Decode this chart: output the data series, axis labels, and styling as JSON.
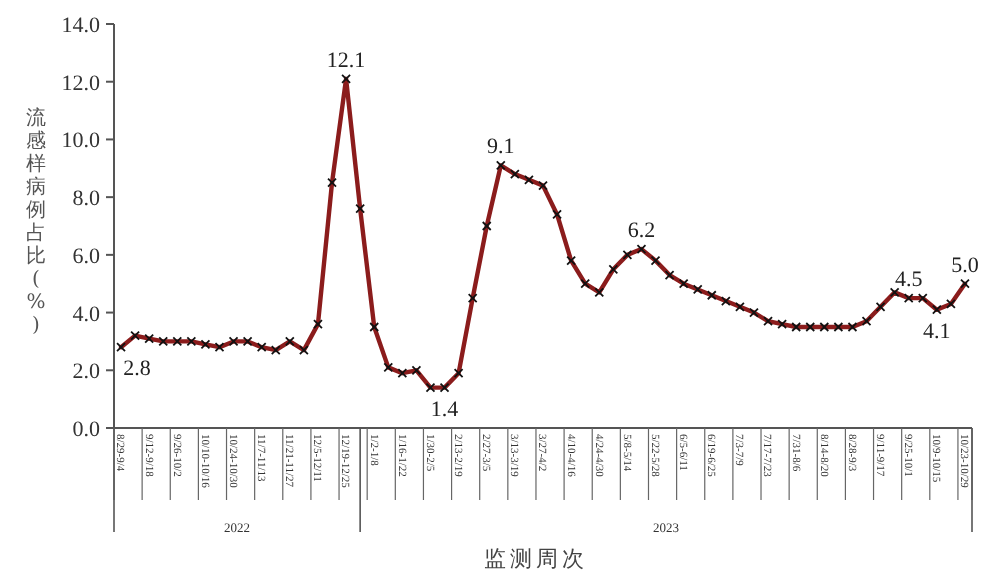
{
  "chart_data": {
    "type": "line",
    "ylabel": "流感样病例占比(%)",
    "xlabel": "监测周次",
    "annotations": [
      "2022",
      "2023"
    ],
    "categories": [
      "8/29-9/4",
      null,
      "9/12-9/18",
      null,
      "9/26-10/2",
      null,
      "10/10-10/16",
      null,
      "10/24-10/30",
      null,
      "11/7-11/13",
      null,
      "11/21-11/27",
      null,
      "12/5-12/11",
      null,
      "12/19-12/25",
      null,
      "1/2-1/8",
      null,
      "1/16-1/22",
      null,
      "1/30-2/5",
      null,
      "2/13-2/19",
      null,
      "2/27-3/5",
      null,
      "3/13-3/19",
      null,
      "3/27-4/2",
      null,
      "4/10-4/16",
      null,
      "4/24-4/30",
      null,
      "5/8-5/14",
      null,
      "5/22-5/28",
      null,
      "6/5-6/11",
      null,
      "6/19-6/25",
      null,
      "7/3-7/9",
      null,
      "7/17-7/23",
      null,
      "7/31-8/6",
      null,
      "8/14-8/20",
      null,
      "8/28-9/3",
      null,
      "9/11-9/17",
      null,
      "9/25-10/1",
      null,
      "10/9-10/15",
      null,
      "10/23-10/29"
    ],
    "series": [
      {
        "color": "#8b1c1c",
        "values": [
          2.8,
          3.2,
          3.1,
          3.0,
          3.0,
          3.0,
          2.9,
          2.8,
          3.0,
          3.0,
          2.8,
          2.7,
          3.0,
          2.7,
          3.6,
          8.5,
          12.1,
          7.6,
          3.5,
          2.1,
          1.9,
          2.0,
          1.4,
          1.4,
          1.9,
          4.5,
          7.0,
          9.1,
          8.8,
          8.6,
          8.4,
          7.4,
          5.8,
          5.0,
          4.7,
          5.5,
          6.0,
          6.2,
          5.8,
          5.3,
          5.0,
          4.8,
          4.6,
          4.4,
          4.2,
          4.0,
          3.7,
          3.6,
          3.5,
          3.5,
          3.5,
          3.5,
          3.5,
          3.7,
          4.2,
          4.7,
          4.5,
          4.5,
          4.1,
          4.3,
          5.0
        ],
        "value_labels": [
          "2.8",
          null,
          null,
          null,
          null,
          null,
          null,
          null,
          null,
          null,
          null,
          null,
          null,
          null,
          null,
          null,
          "12.1",
          null,
          null,
          null,
          null,
          null,
          null,
          "1.4",
          null,
          null,
          null,
          "9.1",
          null,
          null,
          null,
          null,
          null,
          null,
          null,
          null,
          null,
          "6.2",
          null,
          null,
          null,
          null,
          null,
          null,
          null,
          null,
          null,
          null,
          null,
          null,
          null,
          null,
          null,
          null,
          null,
          null,
          "4.5",
          null,
          "4.1",
          null,
          "5.0"
        ]
      }
    ],
    "marker": "cross",
    "ylim": [
      0,
      14
    ],
    "yticks": [
      {
        "value": 0,
        "label": "0.0"
      },
      {
        "value": 2,
        "label": "2.0"
      },
      {
        "value": 4,
        "label": "4.0"
      },
      {
        "value": 6,
        "label": "6.0"
      },
      {
        "value": 8,
        "label": "8.0"
      },
      {
        "value": 10,
        "label": "10.0"
      },
      {
        "value": 12,
        "label": "12.0"
      },
      {
        "value": 14,
        "label": "14.0"
      }
    ],
    "grid": false
  }
}
